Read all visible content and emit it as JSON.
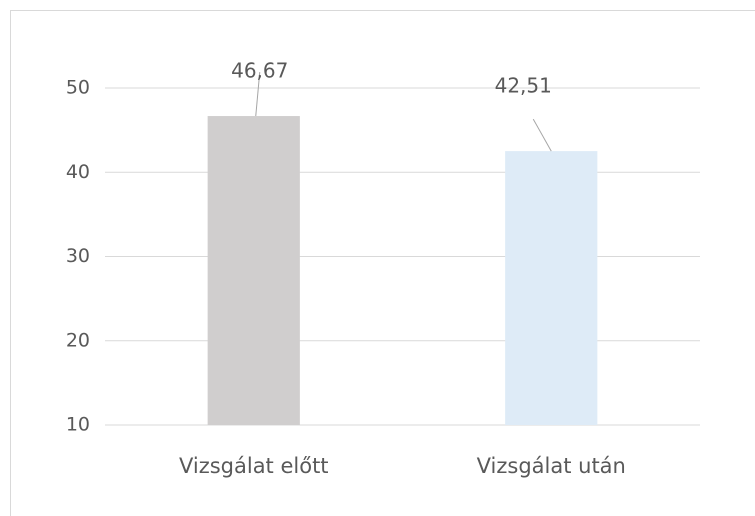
{
  "chart_data": {
    "type": "bar",
    "categories": [
      "Vizsgálat előtt",
      "Vizsgálat után"
    ],
    "values": [
      46.67,
      42.51
    ],
    "value_labels": [
      "46,67",
      "42,51"
    ],
    "colors": [
      "#d0cece",
      "#deebf7"
    ],
    "ylim": [
      10,
      50
    ],
    "yticks": [
      10,
      20,
      30,
      40,
      50
    ],
    "grid": true
  }
}
